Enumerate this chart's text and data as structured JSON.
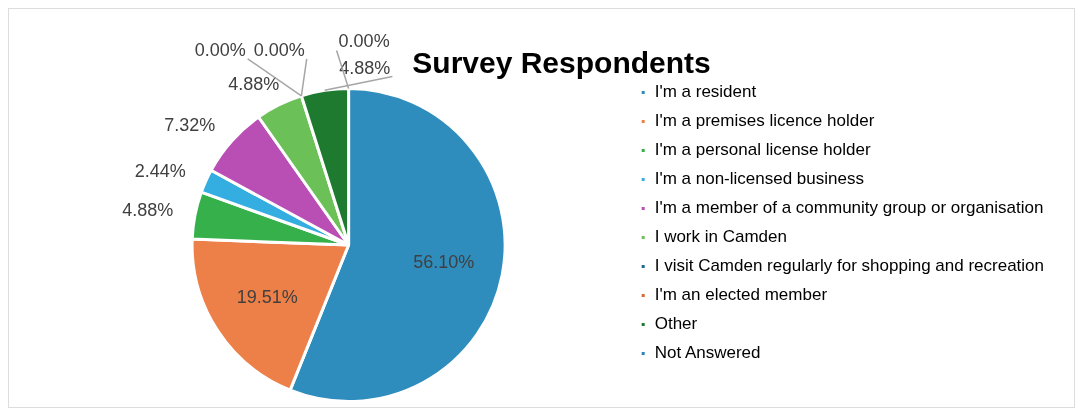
{
  "chart_data": {
    "type": "pie",
    "title": "Survey Respondents",
    "categories": [
      "I'm a resident",
      "I'm a premises licence holder",
      "I'm a personal license holder",
      "I'm a non-licensed business",
      "I'm a member of a community group or organisation",
      "I work in Camden",
      "I visit Camden regularly for shopping and recreation",
      "I'm an elected member",
      "Other",
      "Not Answered"
    ],
    "values": [
      56.1,
      19.51,
      4.88,
      2.44,
      7.32,
      4.88,
      0.0,
      0.0,
      4.88,
      0.0
    ],
    "value_labels": [
      "56.10%",
      "19.51%",
      "4.88%",
      "2.44%",
      "7.32%",
      "4.88%",
      "0.00%",
      "0.00%",
      "4.88%",
      "0.00%"
    ],
    "colors": [
      "#2f8dbd",
      "#ec8048",
      "#35b04a",
      "#34aee0",
      "#b94eb5",
      "#6cc058",
      "#1f6a8f",
      "#d9692f",
      "#1d7a2e",
      "#2e86b8"
    ],
    "legend": "right"
  }
}
